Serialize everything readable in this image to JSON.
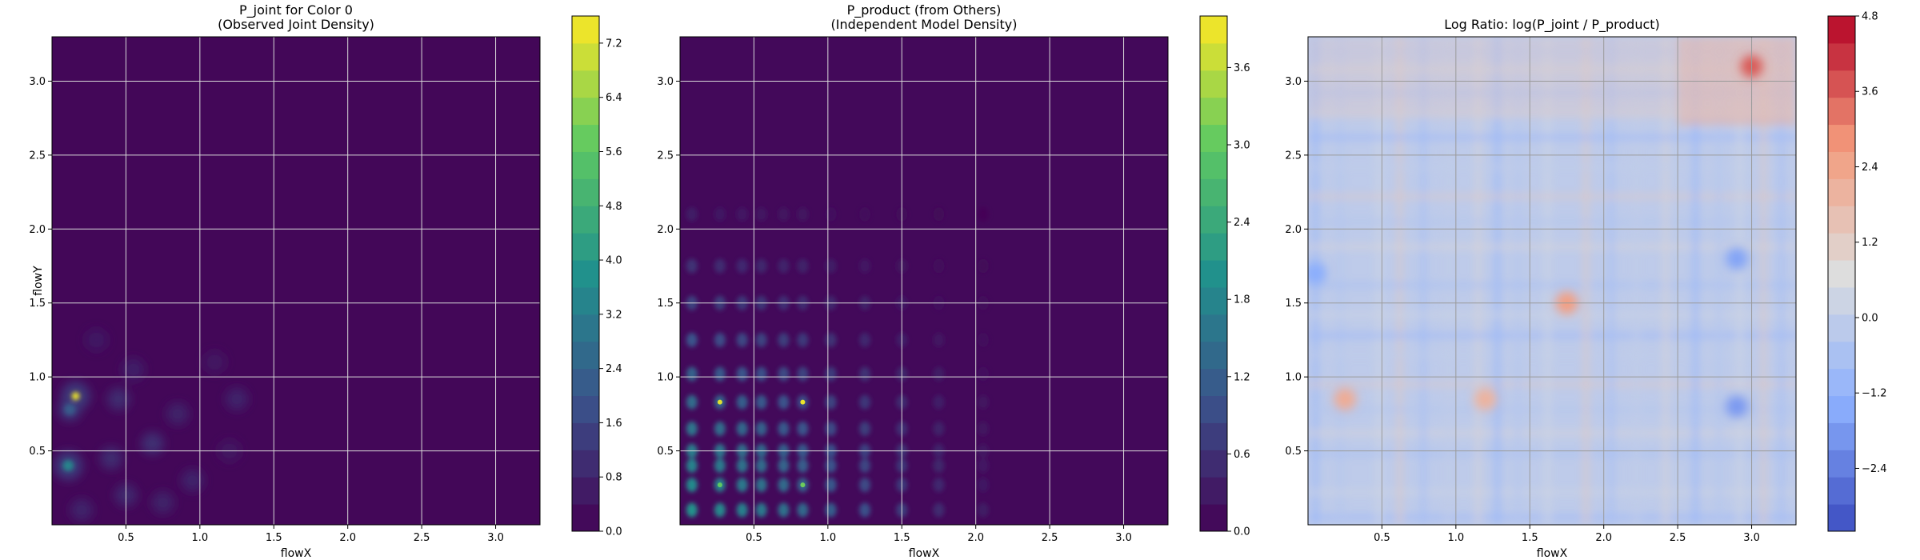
{
  "chart_data": [
    {
      "type": "heatmap",
      "subtype": "filled-contour",
      "title": "P_joint for Color 0\n(Observed Joint Density)",
      "xlabel": "flowX",
      "ylabel": "flowY",
      "xlim": [
        0.0,
        3.3
      ],
      "ylim": [
        0.0,
        3.3
      ],
      "xticks": [
        0.5,
        1.0,
        1.5,
        2.0,
        2.5,
        3.0
      ],
      "xtick_labels": [
        "0.5",
        "1.0",
        "1.5",
        "2.0",
        "2.5",
        "3.0"
      ],
      "yticks": [
        0.5,
        1.0,
        1.5,
        2.0,
        2.5,
        3.0
      ],
      "ytick_labels": [
        "0.5",
        "1.0",
        "1.5",
        "2.0",
        "2.5",
        "3.0"
      ],
      "grid": true,
      "colormap": "viridis",
      "colorbar": {
        "range": [
          0.0,
          7.6
        ],
        "ticks": [
          0.0,
          0.8,
          1.6,
          2.4,
          3.2,
          4.0,
          4.8,
          5.6,
          6.4,
          7.2
        ],
        "tick_labels": [
          "0.0",
          "0.8",
          "1.6",
          "2.4",
          "3.2",
          "4.0",
          "4.8",
          "5.6",
          "6.4",
          "7.2"
        ]
      },
      "density_peaks": [
        {
          "x": 0.16,
          "y": 0.87,
          "value": 7.4
        },
        {
          "x": 0.11,
          "y": 0.4,
          "value": 3.4
        },
        {
          "x": 0.12,
          "y": 0.78,
          "value": 2.2
        },
        {
          "x": 0.45,
          "y": 0.85,
          "value": 1.2
        },
        {
          "x": 0.68,
          "y": 0.55,
          "value": 1.3
        },
        {
          "x": 1.25,
          "y": 0.85,
          "value": 1.0
        },
        {
          "x": 0.85,
          "y": 0.75,
          "value": 0.9
        },
        {
          "x": 0.95,
          "y": 0.3,
          "value": 1.0
        },
        {
          "x": 0.55,
          "y": 1.05,
          "value": 0.8
        },
        {
          "x": 0.3,
          "y": 1.25,
          "value": 0.7
        },
        {
          "x": 1.1,
          "y": 1.1,
          "value": 0.6
        },
        {
          "x": 0.5,
          "y": 0.2,
          "value": 1.1
        },
        {
          "x": 0.4,
          "y": 0.45,
          "value": 1.2
        },
        {
          "x": 1.2,
          "y": 0.5,
          "value": 0.6
        },
        {
          "x": 0.2,
          "y": 0.1,
          "value": 1.0
        },
        {
          "x": 0.75,
          "y": 0.15,
          "value": 0.9
        }
      ]
    },
    {
      "type": "heatmap",
      "subtype": "filled-contour",
      "title": "P_product (from Others)\n(Independent Model Density)",
      "xlabel": "flowX",
      "ylabel": "",
      "xlim": [
        0.0,
        3.3
      ],
      "ylim": [
        0.0,
        3.3
      ],
      "xticks": [
        0.5,
        1.0,
        1.5,
        2.0,
        2.5,
        3.0
      ],
      "xtick_labels": [
        "0.5",
        "1.0",
        "1.5",
        "2.0",
        "2.5",
        "3.0"
      ],
      "yticks": [
        0.5,
        1.0,
        1.5,
        2.0,
        2.5,
        3.0
      ],
      "ytick_labels": [
        "0.5",
        "1.0",
        "1.5",
        "2.0",
        "2.5",
        "3.0"
      ],
      "grid": true,
      "colormap": "viridis",
      "colorbar": {
        "range": [
          0.0,
          4.0
        ],
        "ticks": [
          0.0,
          0.6,
          1.2,
          1.8,
          2.4,
          3.0,
          3.6
        ],
        "tick_labels": [
          "0.0",
          "0.6",
          "1.2",
          "1.8",
          "2.4",
          "3.0",
          "3.6"
        ]
      },
      "marginal_x_peaks": [
        0.08,
        0.27,
        0.42,
        0.55,
        0.7,
        0.83,
        1.02,
        1.25,
        1.5,
        1.75,
        2.05
      ],
      "marginal_y_peaks": [
        0.1,
        0.27,
        0.4,
        0.5,
        0.65,
        0.83,
        1.02,
        1.25,
        1.5,
        1.75,
        2.1
      ],
      "brightest_cells": [
        {
          "x": 0.27,
          "y": 0.83,
          "value": 3.8
        },
        {
          "x": 0.83,
          "y": 0.83,
          "value": 3.9
        },
        {
          "x": 0.27,
          "y": 0.27,
          "value": 3.0
        },
        {
          "x": 0.83,
          "y": 0.27,
          "value": 3.1
        }
      ]
    },
    {
      "type": "heatmap",
      "subtype": "filled-contour",
      "title": "Log Ratio: log(P_joint / P_product)",
      "xlabel": "flowX",
      "ylabel": "",
      "xlim": [
        0.0,
        3.3
      ],
      "ylim": [
        0.0,
        3.3
      ],
      "xticks": [
        0.5,
        1.0,
        1.5,
        2.0,
        2.5,
        3.0
      ],
      "xtick_labels": [
        "0.5",
        "1.0",
        "1.5",
        "2.0",
        "2.5",
        "3.0"
      ],
      "yticks": [
        0.5,
        1.0,
        1.5,
        2.0,
        2.5,
        3.0
      ],
      "ytick_labels": [
        "0.5",
        "1.0",
        "1.5",
        "2.0",
        "2.5",
        "3.0"
      ],
      "grid": true,
      "colormap": "coolwarm",
      "colorbar": {
        "range": [
          -3.4,
          4.8
        ],
        "ticks": [
          -2.4,
          -1.2,
          0.0,
          1.2,
          2.4,
          3.6,
          4.8
        ],
        "tick_labels": [
          "−2.4",
          "−1.2",
          "0.0",
          "1.2",
          "2.4",
          "3.6",
          "4.8"
        ]
      },
      "notable_regions": [
        {
          "x": 3.0,
          "y": 3.1,
          "value": 3.6
        },
        {
          "x": 1.75,
          "y": 1.5,
          "value": 2.6
        },
        {
          "x": 0.25,
          "y": 0.85,
          "value": 2.2
        },
        {
          "x": 1.2,
          "y": 0.85,
          "value": 2.0
        },
        {
          "x": 2.9,
          "y": 0.8,
          "value": -1.8
        },
        {
          "x": 2.9,
          "y": 1.8,
          "value": -1.6
        },
        {
          "x": 0.05,
          "y": 1.7,
          "value": -1.4
        }
      ]
    }
  ]
}
